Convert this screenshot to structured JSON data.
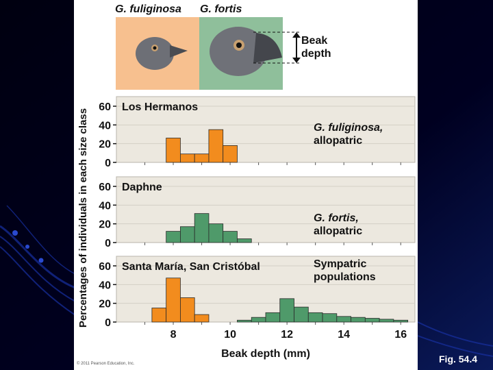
{
  "fig_label": "Fig. 54.4",
  "copyright": "© 2011 Pearson Education, Inc.",
  "header": {
    "species_left": "G. fuliginosa",
    "species_right": "G. fortis",
    "beak_label_line1": "Beak",
    "beak_label_line2": "depth"
  },
  "colors": {
    "fuliginosa": "#f28c1e",
    "fortis": "#4f9a6a",
    "panel_bg": "#ece8df",
    "orange_bg": "#f7c08f",
    "green_bg": "#8fbf9b"
  },
  "chart_data": {
    "type": "bar",
    "ylabel": "Percentages of individuals in each size class",
    "xlabel": "Beak depth (mm)",
    "x_ticks": [
      "8",
      "10",
      "12",
      "14",
      "16"
    ],
    "y_ticks": [
      "0",
      "20",
      "40",
      "60"
    ],
    "ylim": [
      0,
      60
    ],
    "xlim": [
      6.0,
      16.5
    ],
    "grid": true,
    "panels": [
      {
        "title": "Los Hermanos",
        "annotation_line1": "G. fuliginosa,",
        "annotation_line2": "allopatric",
        "series": [
          {
            "bin_start": 7.75,
            "bin_width": 0.5,
            "species": "fuliginosa",
            "values": [
              26,
              9,
              9,
              35,
              18
            ]
          }
        ]
      },
      {
        "title": "Daphne",
        "annotation_line1": "G. fortis,",
        "annotation_line2": "allopatric",
        "series": [
          {
            "bin_start": 7.75,
            "bin_width": 0.5,
            "species": "fortis",
            "values": [
              12,
              17,
              31,
              20,
              12,
              4
            ]
          }
        ]
      },
      {
        "title": "Santa María, San Cristóbal",
        "annotation_line1": "Sympatric",
        "annotation_line2": "populations",
        "series": [
          {
            "bin_start": 7.25,
            "bin_width": 0.5,
            "species": "fuliginosa",
            "values": [
              15,
              47,
              26,
              8
            ]
          },
          {
            "bin_start": 10.25,
            "bin_width": 0.5,
            "species": "fortis",
            "values": [
              2,
              5,
              10,
              25,
              16,
              10,
              9,
              6,
              5,
              4,
              3,
              2
            ]
          }
        ]
      }
    ]
  }
}
